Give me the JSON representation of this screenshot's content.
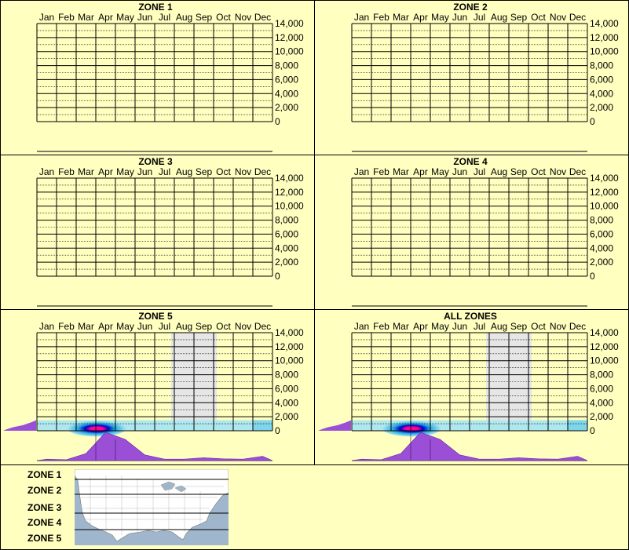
{
  "months": [
    "Jan",
    "Feb",
    "Mar",
    "Apr",
    "May",
    "Jun",
    "Jul",
    "Aug",
    "Sep",
    "Oct",
    "Nov",
    "Dec"
  ],
  "y_ticks": [
    "14,000",
    "12,000",
    "10,000",
    "8,000",
    "6,000",
    "4,000",
    "2,000",
    "0"
  ],
  "colors": {
    "background": "#ffffc0",
    "grid": "#000000",
    "shade": "#e6e6e6",
    "purple": "#9a4fd6",
    "heat_hot": "#ff0090",
    "heat_mid": "#0000cc",
    "heat_cool": "#aee8ee"
  },
  "chart_data": [
    {
      "type": "heatmap",
      "title": "ZONE 1",
      "categories": [
        "Jan",
        "Feb",
        "Mar",
        "Apr",
        "May",
        "Jun",
        "Jul",
        "Aug",
        "Sep",
        "Oct",
        "Nov",
        "Dec"
      ],
      "ylim": [
        0,
        14000
      ],
      "grid": true,
      "shaded_months": [],
      "monthly_activity": [],
      "elevation_profile": []
    },
    {
      "type": "heatmap",
      "title": "ZONE 2",
      "categories": [
        "Jan",
        "Feb",
        "Mar",
        "Apr",
        "May",
        "Jun",
        "Jul",
        "Aug",
        "Sep",
        "Oct",
        "Nov",
        "Dec"
      ],
      "ylim": [
        0,
        14000
      ],
      "grid": true,
      "shaded_months": [],
      "monthly_activity": [],
      "elevation_profile": []
    },
    {
      "type": "heatmap",
      "title": "ZONE 3",
      "categories": [
        "Jan",
        "Feb",
        "Mar",
        "Apr",
        "May",
        "Jun",
        "Jul",
        "Aug",
        "Sep",
        "Oct",
        "Nov",
        "Dec"
      ],
      "ylim": [
        0,
        14000
      ],
      "grid": true,
      "shaded_months": [],
      "monthly_activity": [],
      "elevation_profile": []
    },
    {
      "type": "heatmap",
      "title": "ZONE 4",
      "categories": [
        "Jan",
        "Feb",
        "Mar",
        "Apr",
        "May",
        "Jun",
        "Jul",
        "Aug",
        "Sep",
        "Oct",
        "Nov",
        "Dec"
      ],
      "ylim": [
        0,
        14000
      ],
      "grid": true,
      "shaded_months": [],
      "monthly_activity": [],
      "elevation_profile": []
    },
    {
      "type": "heatmap",
      "title": "ZONE 5",
      "categories": [
        "Jan",
        "Feb",
        "Mar",
        "Apr",
        "May",
        "Jun",
        "Jul",
        "Aug",
        "Sep",
        "Oct",
        "Nov",
        "Dec"
      ],
      "ylim": [
        0,
        14000
      ],
      "grid": true,
      "shaded_months": [
        "Aug",
        "Sep"
      ],
      "monthly_activity": [
        0.05,
        0.03,
        0.25,
        1.0,
        0.75,
        0.2,
        0.05,
        0.05,
        0.1,
        0.06,
        0.05,
        0.15
      ],
      "heat_peak": {
        "month": 3,
        "elevation": 300,
        "elevation_spread": 450
      },
      "elevation_profile": [
        [
          0,
          0
        ],
        [
          200,
          0.1
        ],
        [
          500,
          0.3
        ],
        [
          800,
          0.6
        ],
        [
          1200,
          0.85
        ],
        [
          1500,
          1.0
        ]
      ]
    },
    {
      "type": "heatmap",
      "title": "ALL ZONES",
      "categories": [
        "Jan",
        "Feb",
        "Mar",
        "Apr",
        "May",
        "Jun",
        "Jul",
        "Aug",
        "Sep",
        "Oct",
        "Nov",
        "Dec"
      ],
      "ylim": [
        0,
        14000
      ],
      "grid": true,
      "shaded_months": [
        "Aug",
        "Sep"
      ],
      "monthly_activity": [
        0.05,
        0.03,
        0.25,
        1.0,
        0.75,
        0.2,
        0.05,
        0.05,
        0.1,
        0.06,
        0.05,
        0.15
      ],
      "heat_peak": {
        "month": 3,
        "elevation": 300,
        "elevation_spread": 450
      },
      "elevation_profile": [
        [
          0,
          0
        ],
        [
          200,
          0.1
        ],
        [
          500,
          0.3
        ],
        [
          800,
          0.6
        ],
        [
          1200,
          0.85
        ],
        [
          1500,
          1.0
        ]
      ]
    }
  ],
  "legend": {
    "zones": [
      "ZONE 1",
      "ZONE 2",
      "ZONE 3",
      "ZONE 4",
      "ZONE 5"
    ]
  }
}
